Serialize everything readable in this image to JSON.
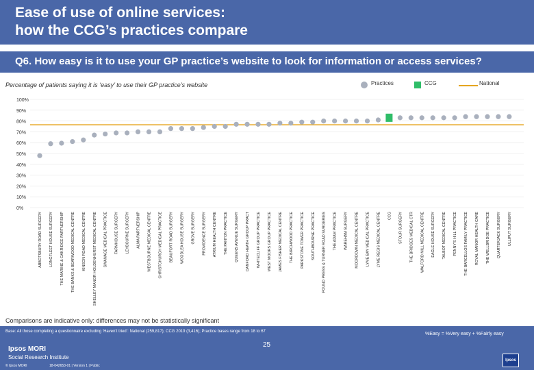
{
  "header": {
    "title_line1": "Ease of use of online services:",
    "title_line2": "how the CCG’s practices compare"
  },
  "question": "Q6. How easy is it to use your GP practice’s website to look for information or access services?",
  "subtitle": "Percentage of patients saying it is ‘easy’ to use their GP practice’s website",
  "legend": {
    "practices": "Practices",
    "ccg": "CCG",
    "national": "National"
  },
  "colors": {
    "practice": "#a9b0bd",
    "ccg": "#2fbd68",
    "national": "#e5a51f"
  },
  "chart_data": {
    "type": "scatter",
    "ylim": [
      0,
      100
    ],
    "yticks": [
      "0%",
      "10%",
      "20%",
      "30%",
      "40%",
      "50%",
      "60%",
      "70%",
      "80%",
      "90%",
      "100%"
    ],
    "national": 76.5,
    "categories": [
      "ABBOTSBURY ROAD SURGERY",
      "LONGFLEET HOUSE SURGERY",
      "THE MARINE & OAKRIDGE PARTNERSHIP",
      "THE BANKS & BEARWOOD MEDICAL CENTRE",
      "KINSON ROAD MEDICAL CENTRE",
      "SHELLEY MANOR HOLDENHURST MEDICAL CENTRE",
      "SWANAGE MEDICAL PRACTICE",
      "FARMHOUSE SURGERY",
      "LEYBOURNE SURGERY",
      "ALMA PARTNERSHIP",
      "WESTBOURNE MEDICAL CENTRE",
      "CHRISTCHURCH MEDICAL PRACTICE",
      "BEAUFORT ROAD SURGERY",
      "WOODLEA HOUSE SURGERY",
      "GROVE SURGERY",
      "PROVIDENCE SURGERY",
      "ATRIUM HEALTH CENTRE",
      "THE PANTON PRACTICE",
      "QUEENS AVENUE SURGERY",
      "DANFORD HEATH GROUP PRACT",
      "WHITECLIFF GROUP PRACTICE",
      "WEST MOORS GROUP PRACTICE",
      "JAMES FISHER MEDICAL CENTRE",
      "THE BIRCHWOOD PRACTICE",
      "PARKSTONE TOWER PRACTICE",
      "SOUTHBOURNE PRACTICE",
      "POUND PRESS & TURNER ROAD SURGERIES",
      "THE ADAM PRACTICE",
      "WAREHAM SURGERY",
      "MOORDOWN MEDICAL CENTRE",
      "LYME BAY MEDICAL PRACTICE",
      "LYME REGIS MEDICAL CENTRE",
      "CCG",
      "STOUR SURGERY",
      "THE BRIDGES MEDICAL CTR",
      "WALFORD MILL MEDICAL CENTRE",
      "EAGLE HOUSE SURGERY",
      "TALBOT MEDICAL CENTRE",
      "PENNY'S HILL PRACTICE",
      "THE BARCELLOS FAMILY PRACTICE",
      "ROYAL MANOR HEALTH CARE",
      "THE WELLBRIDGE PRACTICE",
      "QUARTERJACK SURGERY",
      "ULLIPUT SURGERY"
    ],
    "values": [
      48,
      59,
      59.5,
      61,
      62.5,
      67,
      68,
      69,
      69,
      70,
      70,
      70,
      73,
      73,
      73,
      74,
      75,
      75,
      77,
      77,
      77,
      77,
      78,
      78,
      79,
      79,
      80,
      80,
      80,
      80,
      80,
      81,
      83,
      83,
      83,
      83,
      83,
      83,
      83,
      84,
      84,
      84,
      84,
      84
    ],
    "ccg_index": 32
  },
  "footer": {
    "note": "Comparisons are indicative only: differences may not be statistically significant",
    "base": "Base: All those completing a questionnaire excluding ‘Haven’t tried’: National (259,817); CCG 2019 (3,416); Practice bases range from 18 to 67",
    "easy_def": "%Easy = %Very easy + %Fairly easy",
    "page_number": "25",
    "logo_line1": "Ipsos MORI",
    "logo_line2": "Social Research Institute",
    "copyright": "© Ipsos MORI",
    "reference": "18-042653-01 | Version 1 | Public",
    "ipsos_badge": "Ipsos"
  }
}
